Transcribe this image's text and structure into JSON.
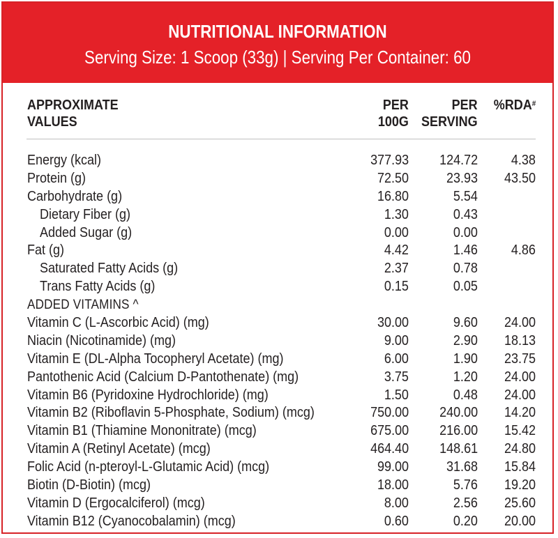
{
  "header": {
    "title": "NUTRITIONAL INFORMATION",
    "subtitle": "Serving Size: 1 Scoop (33g) | Serving Per Container: 60"
  },
  "columns": {
    "label_line1": "APPROXIMATE",
    "label_line2": "VALUES",
    "per100_line1": "PER",
    "per100_line2": "100G",
    "serving_line1": "PER",
    "serving_line2": "SERVING",
    "rda": "%RDA",
    "rda_mark": "#"
  },
  "rows": [
    {
      "label": "Energy (kcal)",
      "per100": "377.93",
      "serving": "124.72",
      "rda": "4.38",
      "indent": false
    },
    {
      "label": "Protein (g)",
      "per100": "72.50",
      "serving": "23.93",
      "rda": "43.50",
      "indent": false
    },
    {
      "label": "Carbohydrate (g)",
      "per100": "16.80",
      "serving": "5.54",
      "rda": "",
      "indent": false
    },
    {
      "label": "Dietary Fiber (g)",
      "per100": "1.30",
      "serving": "0.43",
      "rda": "",
      "indent": true
    },
    {
      "label": "Added Sugar (g)",
      "per100": "0.00",
      "serving": "0.00",
      "rda": "",
      "indent": true
    },
    {
      "label": "Fat (g)",
      "per100": "4.42",
      "serving": "1.46",
      "rda": "4.86",
      "indent": false
    },
    {
      "label": "Saturated Fatty Acids (g)",
      "per100": "2.37",
      "serving": "0.78",
      "rda": "",
      "indent": true
    },
    {
      "label": "Trans Fatty Acids (g)",
      "per100": "0.15",
      "serving": "0.05",
      "rda": "",
      "indent": true
    },
    {
      "label": "ADDED VITAMINS ^",
      "per100": "",
      "serving": "",
      "rda": "",
      "indent": false,
      "caps": true
    },
    {
      "label": "Vitamin C (L-Ascorbic Acid) (mg)",
      "per100": "30.00",
      "serving": "9.60",
      "rda": "24.00",
      "indent": false
    },
    {
      "label": "Niacin (Nicotinamide) (mg)",
      "per100": "9.00",
      "serving": "2.90",
      "rda": "18.13",
      "indent": false
    },
    {
      "label": "Vitamin E (DL-Alpha Tocopheryl Acetate) (mg)",
      "per100": "6.00",
      "serving": "1.90",
      "rda": "23.75",
      "indent": false
    },
    {
      "label": "Pantothenic Acid (Calcium D-Pantothenate) (mg)",
      "per100": "3.75",
      "serving": "1.20",
      "rda": "24.00",
      "indent": false
    },
    {
      "label": "Vitamin B6 (Pyridoxine Hydrochloride) (mg)",
      "per100": "1.50",
      "serving": "0.48",
      "rda": "24.00",
      "indent": false
    },
    {
      "label": "Vitamin B2 (Riboflavin 5-Phosphate, Sodium) (mcg)",
      "per100": "750.00",
      "serving": "240.00",
      "rda": "14.20",
      "indent": false
    },
    {
      "label": "Vitamin B1 (Thiamine Mononitrate) (mcg)",
      "per100": "675.00",
      "serving": "216.00",
      "rda": "15.42",
      "indent": false
    },
    {
      "label": "Vitamin A (Retinyl Acetate) (mcg)",
      "per100": "464.40",
      "serving": "148.61",
      "rda": "24.80",
      "indent": false
    },
    {
      "label": "Folic Acid (n-pteroyl-L-Glutamic Acid) (mcg)",
      "per100": "99.00",
      "serving": "31.68",
      "rda": "15.84",
      "indent": false
    },
    {
      "label": "Biotin (D-Biotin) (mcg)",
      "per100": "18.00",
      "serving": "5.76",
      "rda": "19.20",
      "indent": false
    },
    {
      "label": "Vitamin D (Ergocalciferol) (mcg)",
      "per100": "8.00",
      "serving": "2.56",
      "rda": "25.60",
      "indent": false
    },
    {
      "label": "Vitamin B12 (Cyanocobalamin) (mcg)",
      "per100": "0.60",
      "serving": "0.20",
      "rda": "20.00",
      "indent": false
    }
  ],
  "colors": {
    "header_bg": "#e42128",
    "border": "#d72227",
    "text": "#231f20"
  }
}
